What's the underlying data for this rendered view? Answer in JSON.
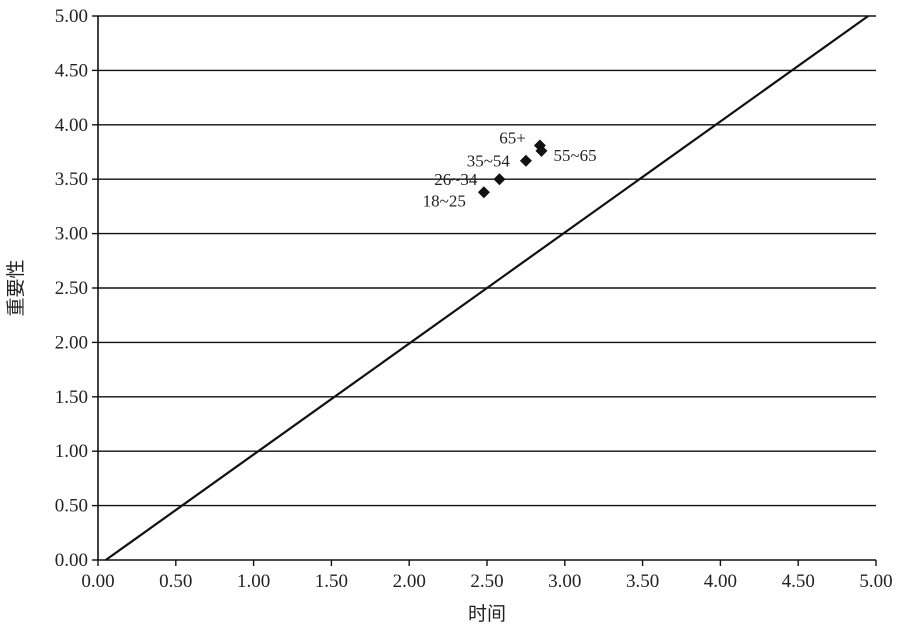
{
  "chart_data": {
    "type": "scatter",
    "xlabel": "时间",
    "ylabel": "重要性",
    "xlim": [
      0,
      5
    ],
    "ylim": [
      0,
      5
    ],
    "x_ticks": [
      "0.00",
      "0.50",
      "1.00",
      "1.50",
      "2.00",
      "2.50",
      "3.00",
      "3.50",
      "4.00",
      "4.50",
      "5.00"
    ],
    "y_ticks": [
      "0.00",
      "0.50",
      "1.00",
      "1.50",
      "2.00",
      "2.50",
      "3.00",
      "3.50",
      "4.00",
      "4.50",
      "5.00"
    ],
    "grid": "horizontal",
    "series": [
      {
        "points": [
          {
            "label": "18~25",
            "x": 2.48,
            "y": 3.38
          },
          {
            "label": "26~34",
            "x": 2.58,
            "y": 3.5
          },
          {
            "label": "35~54",
            "x": 2.75,
            "y": 3.67
          },
          {
            "label": "55~65",
            "x": 2.85,
            "y": 3.76
          },
          {
            "label": "65+",
            "x": 2.84,
            "y": 3.81
          }
        ]
      }
    ],
    "reference_line": {
      "x": [
        0.05,
        4.95
      ],
      "y": [
        0,
        5
      ]
    }
  }
}
